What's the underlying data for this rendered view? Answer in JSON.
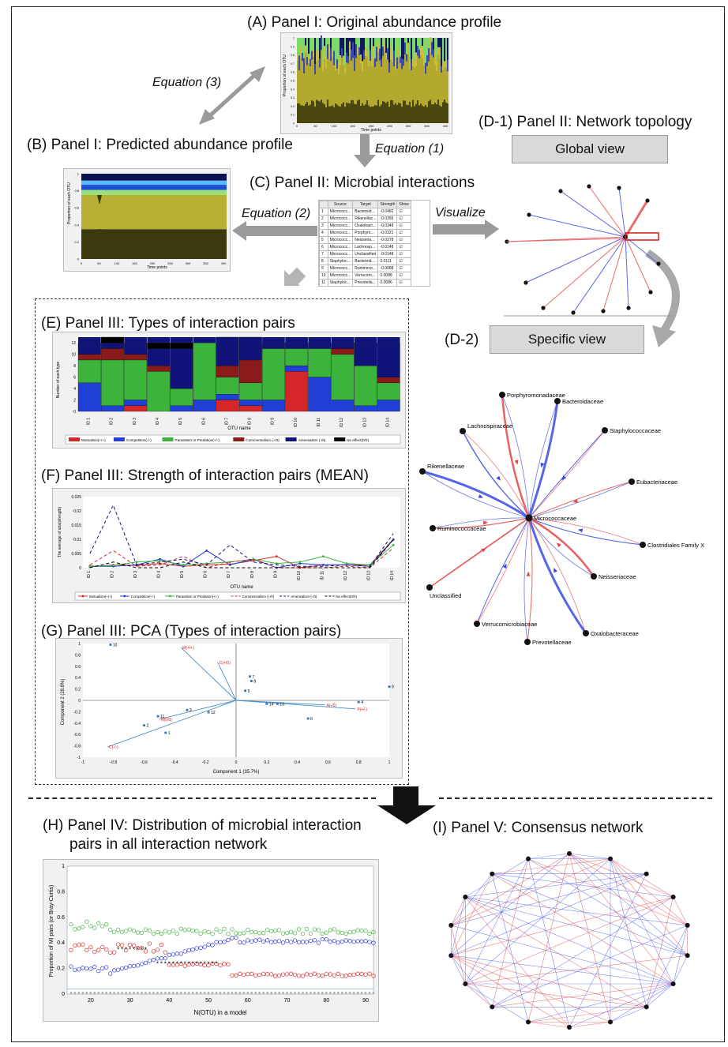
{
  "panels": {
    "A": "(A) Panel I: Original abundance profile",
    "B": "(B) Panel I: Predicted abundance profile",
    "C": "(C) Panel II: Microbial interactions",
    "D1": "(D-1) Panel II: Network topology",
    "D2": "(D-2)",
    "E": "(E) Panel III: Types of interaction pairs",
    "F": "(F) Panel III: Strength of interaction pairs (MEAN)",
    "G": "(G) Panel III: PCA (Types of interaction pairs)",
    "H1": "(H) Panel IV: Distribution of microbial interaction",
    "H2": "pairs in all interaction network",
    "I": "(I) Panel V: Consensus network"
  },
  "equations": {
    "eq1": "Equation (1)",
    "eq2": "Equation (2)",
    "eq3": "Equation (3)",
    "visualize": "Visualize"
  },
  "buttons": {
    "global": "Global view",
    "specific": "Specific view"
  },
  "abundance": {
    "ylabel": "Proportion of each OTU",
    "xlabel": "Time points",
    "xticks": [
      "0",
      "50",
      "100",
      "150",
      "200",
      "250",
      "300",
      "350",
      "400"
    ]
  },
  "interaction_table": {
    "headers": [
      "",
      "Source",
      "Target",
      "Strength",
      "Show"
    ],
    "rows": [
      [
        "1",
        "Micrococc...",
        "Bacteroid...",
        "-0.0482",
        "☑"
      ],
      [
        "2",
        "Micrococc...",
        "Rikenellac...",
        "-0.0356",
        "☑"
      ],
      [
        "3",
        "Micrococc...",
        "Oxalobact...",
        "-0.0348",
        "☑"
      ],
      [
        "4",
        "Micrococc...",
        "Porphyro...",
        "-0.0321",
        "☑"
      ],
      [
        "5",
        "Micrococc...",
        "Neisseria...",
        "-0.0278",
        "☑"
      ],
      [
        "6",
        "Micrococc...",
        "Lachnosp...",
        "-0.0148",
        "☑"
      ],
      [
        "7",
        "Micrococc...",
        "Unclassified",
        "-0.0148",
        "☑"
      ],
      [
        "8",
        "Staphyloc...",
        "Bacteroid...",
        "0.0111",
        "☑"
      ],
      [
        "9",
        "Micrococc...",
        "Ruminoco...",
        "-0.0088",
        "☑"
      ],
      [
        "10",
        "Micrococc...",
        "Verrucom...",
        "0.0088",
        "☑"
      ],
      [
        "11",
        "Staphyloc...",
        "Prevotella...",
        "0.0086",
        "☑"
      ],
      [
        "12",
        "Staphyloc...",
        "Porphyro...",
        "0.0083",
        "☑"
      ]
    ]
  },
  "specific_network": {
    "center": "Micrococcaceae",
    "nodes": [
      "Porphyromonadaceae",
      "Bacteroidaceae",
      "Staphylococcaceae",
      "Eubacteriaceae",
      "Clostridiales Family X",
      "Neisseriaceae",
      "Oxalobacteraceae",
      "Prevotellaceae",
      "Verrucomicrobiaceae",
      "Unclassified",
      "Ruminococcaceae",
      "Rikenellaceae",
      "Lachnospiraceae"
    ]
  },
  "chart_data": [
    {
      "type": "bar",
      "panel": "E",
      "categories": [
        "ID 1",
        "ID 2",
        "ID 3",
        "ID 4",
        "ID 5",
        "ID 6",
        "ID 7",
        "ID 8",
        "ID 9",
        "ID 10",
        "ID 11",
        "ID 12",
        "ID 13",
        "ID 14"
      ],
      "xlabel": "OTU name",
      "ylabel": "Number of each type",
      "ylim": [
        0,
        13
      ],
      "yticks": [
        0,
        2,
        4,
        6,
        8,
        10,
        12
      ],
      "series": [
        {
          "name": "Mutualism(+/+)",
          "color": "#d62728",
          "values": [
            0,
            0,
            1,
            0,
            0,
            0,
            2,
            1,
            0,
            7,
            0,
            0,
            0,
            0
          ]
        },
        {
          "name": "Competition(-/-)",
          "color": "#1f3fd6",
          "values": [
            5,
            1,
            1,
            0,
            1,
            2,
            1,
            1,
            2,
            1,
            6,
            2,
            1,
            2
          ]
        },
        {
          "name": "Parasitism or Predation(+/-)",
          "color": "#3cb43c",
          "values": [
            4,
            8,
            7,
            7,
            3,
            10,
            3,
            3,
            9,
            3,
            5,
            8,
            7,
            3
          ]
        },
        {
          "name": "Commensalism (+/0)",
          "color": "#8b1a1a",
          "values": [
            1,
            2,
            1,
            1,
            0,
            0,
            2,
            4,
            0,
            0,
            0,
            1,
            0,
            1
          ]
        },
        {
          "name": "Amensalism (-/0)",
          "color": "#10137a",
          "values": [
            2,
            1,
            2,
            3,
            7,
            0,
            5,
            4,
            1,
            1,
            1,
            1,
            4,
            6
          ]
        },
        {
          "name": "No effect(0/0)",
          "color": "#000000",
          "values": [
            0,
            1,
            0,
            1,
            1,
            0,
            0,
            0,
            0,
            0,
            0,
            0,
            0,
            0
          ]
        }
      ]
    },
    {
      "type": "line",
      "panel": "F",
      "categories": [
        "ID 1",
        "ID 2",
        "ID 3",
        "ID 4",
        "ID 5",
        "ID 6",
        "ID 7",
        "ID 8",
        "ID 9",
        "ID 10",
        "ID 11",
        "ID 12",
        "ID 13",
        "ID 14"
      ],
      "xlabel": "OTU name",
      "ylabel": "The average of abs(strength)",
      "ylim": [
        0,
        0.025
      ],
      "yticks": [
        0,
        0.005,
        0.01,
        0.015,
        0.02,
        0.025
      ],
      "ytick_labels": [
        "0",
        "0.005",
        "0.01",
        "0.015",
        "0.02",
        "0.025"
      ],
      "series": [
        {
          "name": "Mutualism(+/+)",
          "color": "#d62728",
          "dash": false,
          "marker": true,
          "values": [
            0.0003,
            0.001,
            0.0008,
            0.0015,
            0.0005,
            0.001,
            0.0012,
            0.0025,
            0.004,
            0,
            0.001,
            0.001,
            0.001,
            0.01
          ]
        },
        {
          "name": "Competition(-/-)",
          "color": "#1f3fd6",
          "dash": false,
          "marker": true,
          "values": [
            0.0005,
            0.0005,
            0.001,
            0.003,
            0.0005,
            0.006,
            0.001,
            0.003,
            0,
            0.0015,
            0.001,
            0.001,
            0.0005,
            0.0098
          ]
        },
        {
          "name": "Parasitism or Predation(+/-)",
          "color": "#3cb43c",
          "dash": false,
          "marker": true,
          "values": [
            0.0006,
            0.0008,
            0.002,
            0.0025,
            0.001,
            0.0015,
            0.002,
            0.003,
            0.0015,
            0.002,
            0.004,
            0.0015,
            0.001,
            0.008
          ]
        },
        {
          "name": "Commensalism (+/0)",
          "color": "#d62728",
          "dash": true,
          "marker": false,
          "values": [
            0.001,
            0.006,
            0.0005,
            0.001,
            0.004,
            0,
            0.002,
            0.003,
            0,
            0,
            0,
            0.0005,
            0,
            0.007
          ]
        },
        {
          "name": "Amensalism (-/0)",
          "color": "#10137a",
          "dash": true,
          "marker": false,
          "values": [
            0.005,
            0.022,
            0.001,
            0.002,
            0.003,
            0.001,
            0.008,
            0.002,
            0.001,
            0.0005,
            0.0005,
            0.001,
            0.0005,
            0.012
          ]
        },
        {
          "name": "No effect(0/0)",
          "color": "#000000",
          "dash": true,
          "marker": false,
          "values": [
            0,
            0.002,
            0,
            0,
            0.002,
            0,
            0,
            0,
            0,
            0,
            0,
            0,
            0,
            0.01
          ]
        }
      ]
    },
    {
      "type": "scatter",
      "panel": "G",
      "xlabel": "Component 1 (35.7%)",
      "ylabel": "Component 2 (28.8%)",
      "xlim": [
        -1,
        1
      ],
      "ylim": [
        -1,
        1
      ],
      "xticks": [
        "-1",
        "-0.8",
        "-0.6",
        "-0.4",
        "-0.2",
        "0",
        "0.2",
        "0.4",
        "0.6",
        "0.8",
        "1"
      ],
      "yticks": [
        "-1",
        "-0.8",
        "-0.6",
        "-0.4",
        "-0.2",
        "0",
        "0.2",
        "0.4",
        "0.6",
        "0.8",
        "1"
      ],
      "points": [
        {
          "label": "1",
          "x": -0.46,
          "y": -0.57
        },
        {
          "label": "2",
          "x": -0.6,
          "y": -0.44
        },
        {
          "label": "3",
          "x": -0.32,
          "y": -0.17
        },
        {
          "label": "4",
          "x": 0.8,
          "y": -0.03
        },
        {
          "label": "5",
          "x": 0.06,
          "y": 0.17
        },
        {
          "label": "6",
          "x": 0.47,
          "y": -0.32
        },
        {
          "label": "7",
          "x": 0.09,
          "y": 0.42
        },
        {
          "label": "8",
          "x": 0.1,
          "y": 0.34
        },
        {
          "label": "9",
          "x": 1.0,
          "y": 0.24
        },
        {
          "label": "10",
          "x": -0.82,
          "y": 0.98
        },
        {
          "label": "11",
          "x": -0.51,
          "y": -0.28
        },
        {
          "label": "12",
          "x": -0.18,
          "y": -0.21
        },
        {
          "label": "13",
          "x": 0.27,
          "y": -0.06
        },
        {
          "label": "14",
          "x": 0.2,
          "y": -0.06
        }
      ],
      "vectors": [
        {
          "label": "M(+/+)",
          "x": -0.36,
          "y": 0.93
        },
        {
          "label": "C(+/0)",
          "x": -0.12,
          "y": 0.67
        },
        {
          "label": "A(-/0)",
          "x": 0.58,
          "y": -0.08
        },
        {
          "label": "P(+/-)",
          "x": 0.78,
          "y": -0.15
        },
        {
          "label": "N(0/0)",
          "x": -0.5,
          "y": -0.33
        },
        {
          "label": "C(-/-)",
          "x": -0.84,
          "y": -0.82
        }
      ]
    },
    {
      "type": "scatter",
      "panel": "H",
      "xlabel": "N(OTU) in a model",
      "ylabel": "Proportion of MI pairs (or Bray-Curtis)",
      "xlim": [
        14,
        92
      ],
      "ylim": [
        0,
        1
      ],
      "xticks": [
        "20",
        "30",
        "40",
        "50",
        "60",
        "70",
        "80",
        "90"
      ],
      "yticks": [
        "0",
        "0.2",
        "0.4",
        "0.6",
        "0.8",
        "1"
      ]
    }
  ]
}
